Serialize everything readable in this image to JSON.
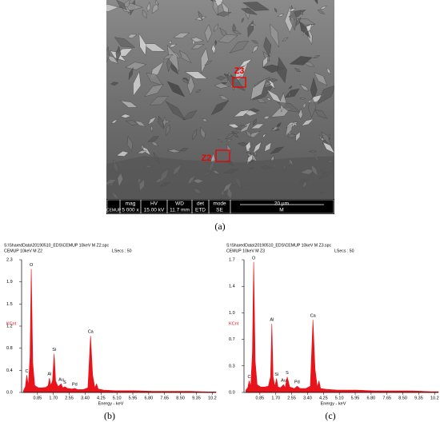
{
  "image": {
    "labels": [
      "Z3",
      "Z2"
    ],
    "info_bar": {
      "logo": "CEMUP",
      "headers": [
        "mag",
        "HV",
        "WD",
        "det",
        "mode"
      ],
      "values": [
        "5 000 x",
        "15.00 kV",
        "11.7 mm",
        "ETD",
        "SE"
      ],
      "scale": "20 µm",
      "mode_value": "M"
    }
  },
  "captions": [
    "(a)",
    "(b)",
    "(c)"
  ],
  "chart_data": [
    {
      "type": "area",
      "header": [
        "S:\\SharedData\\20190510_EDS\\CEMUP     10keV     M     Z2.spc",
        "CEMUP    10keV    M    Z2"
      ],
      "lsecs": "LSecs : 50",
      "ylabel": "KCnt",
      "xlabel": "Energy - keV",
      "color": "#e8141b",
      "x": [
        0.1,
        0.2,
        0.28,
        0.36,
        0.45,
        0.52,
        0.6,
        0.7,
        0.9,
        1.1,
        1.3,
        1.42,
        1.49,
        1.56,
        1.65,
        1.74,
        1.82,
        1.95,
        2.12,
        2.2,
        2.31,
        2.45,
        2.7,
        2.84,
        3.0,
        3.3,
        3.55,
        3.69,
        3.8,
        3.92,
        4.01,
        4.1,
        4.4,
        5.0,
        6.0,
        7.0,
        8.0,
        9.0,
        10.0,
        10.4
      ],
      "values": [
        0.03,
        0.1,
        0.3,
        0.12,
        0.6,
        2.14,
        0.5,
        0.12,
        0.08,
        0.08,
        0.09,
        0.12,
        0.25,
        0.12,
        0.2,
        0.67,
        0.2,
        0.1,
        0.15,
        0.08,
        0.1,
        0.07,
        0.06,
        0.07,
        0.05,
        0.05,
        0.08,
        0.98,
        0.3,
        0.08,
        0.15,
        0.06,
        0.04,
        0.03,
        0.03,
        0.02,
        0.02,
        0.02,
        0.01,
        0.01
      ],
      "annotations": [
        {
          "text": "C",
          "x": 0.28
        },
        {
          "text": "O",
          "x": 0.52
        },
        {
          "text": "Al",
          "x": 1.49
        },
        {
          "text": "Si",
          "x": 1.74
        },
        {
          "text": "Au",
          "x": 2.12
        },
        {
          "text": "S",
          "x": 2.31
        },
        {
          "text": "Pd",
          "x": 2.84
        },
        {
          "text": "Ca",
          "x": 3.69
        }
      ],
      "xlim": [
        0,
        10.4
      ],
      "ylim": [
        0,
        2.3
      ],
      "xticks": [
        0.85,
        {
          "value": 1.7,
          "label": "1.70"
        },
        2.55,
        {
          "value": 3.4,
          "label": "3.40"
        },
        4.25,
        {
          "value": 5.1,
          "label": "5.10"
        },
        5.95,
        {
          "value": 6.8,
          "label": "6.80"
        },
        7.65,
        {
          "value": 8.5,
          "label": "8.50"
        },
        9.35,
        10.2
      ],
      "yticks": [
        {
          "value": 0,
          "label": "0.0"
        },
        {
          "value": 0.38,
          "label": "0.4"
        },
        {
          "value": 0.77,
          "label": "0.8"
        },
        {
          "value": 1.15,
          "label": "1.2"
        },
        {
          "value": 1.53,
          "label": "1.5"
        },
        {
          "value": 1.92,
          "label": "1.9"
        },
        2.3
      ]
    },
    {
      "type": "area",
      "header": [
        "S:\\SharedData\\20190510_EDS\\CEMUP     10keV     M     Z3.spc",
        "CEMUP    10keV    M    Z3"
      ],
      "lsecs": "LSecs : 50",
      "ylabel": "KCnt",
      "xlabel": "Energy - keV",
      "color": "#e8141b",
      "x": [
        0.1,
        0.2,
        0.28,
        0.36,
        0.45,
        0.52,
        0.6,
        0.7,
        0.9,
        1.1,
        1.3,
        1.42,
        1.49,
        1.56,
        1.65,
        1.74,
        1.82,
        1.95,
        2.12,
        2.2,
        2.31,
        2.45,
        2.7,
        2.84,
        3.0,
        3.3,
        3.55,
        3.69,
        3.8,
        3.92,
        4.01,
        4.1,
        4.4,
        5.0,
        6.0,
        7.0,
        8.0,
        9.0,
        10.0,
        10.4
      ],
      "values": [
        0.03,
        0.06,
        0.15,
        0.08,
        0.5,
        1.67,
        0.4,
        0.1,
        0.07,
        0.07,
        0.08,
        0.2,
        0.88,
        0.2,
        0.08,
        0.18,
        0.07,
        0.06,
        0.1,
        0.06,
        0.2,
        0.07,
        0.05,
        0.08,
        0.05,
        0.05,
        0.08,
        0.93,
        0.3,
        0.07,
        0.15,
        0.05,
        0.04,
        0.03,
        0.03,
        0.02,
        0.02,
        0.02,
        0.01,
        0.01
      ],
      "annotations": [
        {
          "text": "C",
          "x": 0.28
        },
        {
          "text": "O",
          "x": 0.52
        },
        {
          "text": "Al",
          "x": 1.49
        },
        {
          "text": "Si",
          "x": 1.74
        },
        {
          "text": "Au",
          "x": 2.12
        },
        {
          "text": "S",
          "x": 2.31
        },
        {
          "text": "Pd",
          "x": 2.84
        },
        {
          "text": "Ca",
          "x": 3.69
        }
      ],
      "xlim": [
        0,
        10.4
      ],
      "ylim": [
        0,
        1.7
      ],
      "xticks": [
        0.85,
        {
          "value": 1.7,
          "label": "1.70"
        },
        2.55,
        {
          "value": 3.4,
          "label": "3.40"
        },
        4.25,
        {
          "value": 5.1,
          "label": "5.10"
        },
        5.95,
        {
          "value": 6.8,
          "label": "6.80"
        },
        7.65,
        {
          "value": 8.5,
          "label": "8.50"
        },
        9.35,
        10.2
      ],
      "yticks": [
        {
          "value": 0,
          "label": "0.0"
        },
        {
          "value": 0.34,
          "label": "0.3"
        },
        {
          "value": 0.68,
          "label": "0.7"
        },
        {
          "value": 1.02,
          "label": "1.0"
        },
        {
          "value": 1.36,
          "label": "1.4"
        },
        1.7
      ]
    }
  ]
}
